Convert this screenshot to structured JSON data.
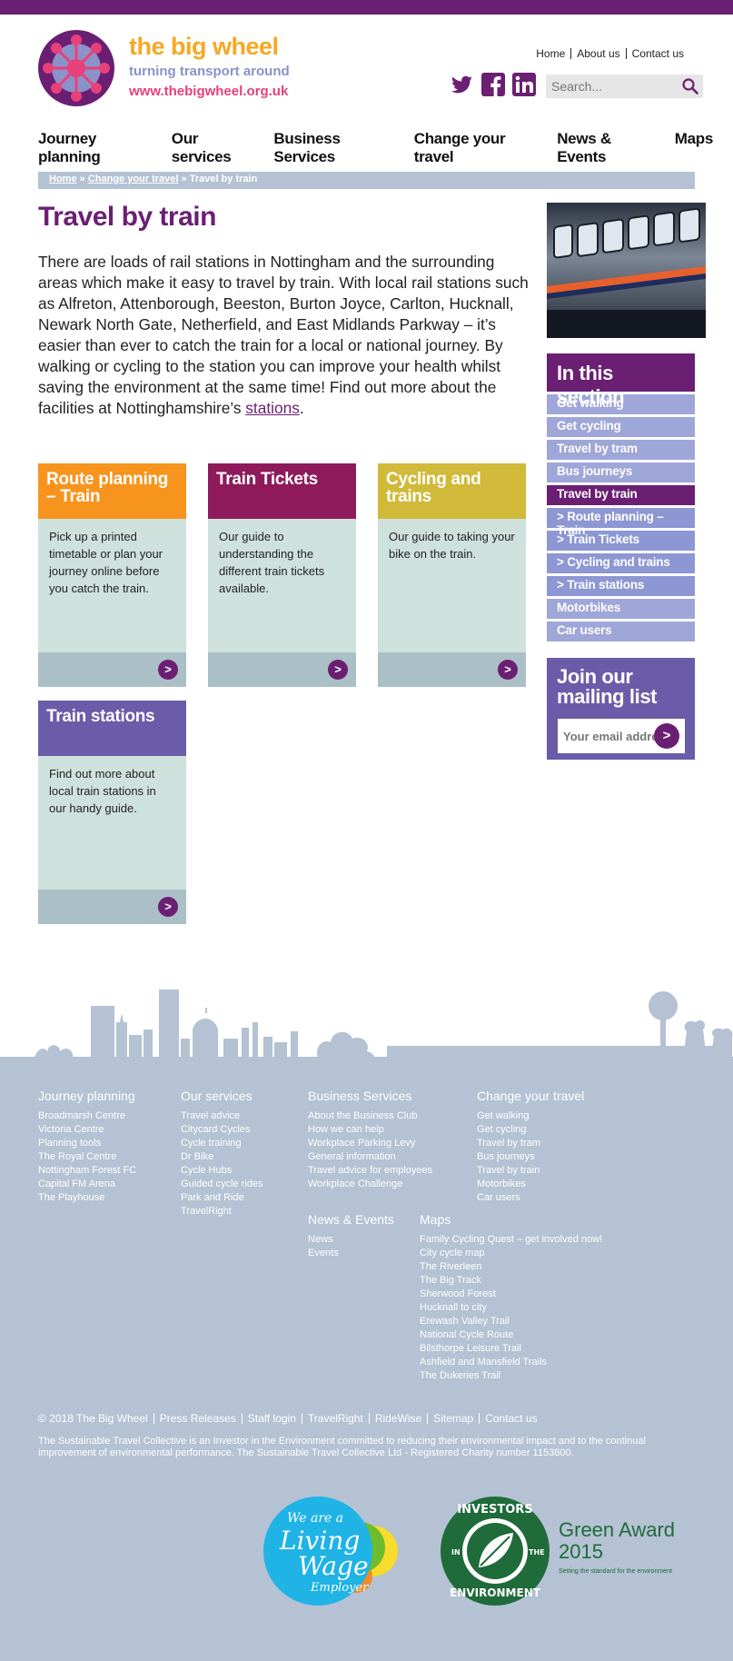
{
  "brand": {
    "name": "the big wheel",
    "tagline": "turning transport around",
    "url": "www.thebigwheel.org.uk",
    "colors": {
      "purple": "#6b1f73",
      "orange": "#f7a823",
      "lilac": "#8b92c8",
      "pink": "#e8407a"
    }
  },
  "util_nav": [
    "Home",
    "About us",
    "Contact us"
  ],
  "social_icons": [
    "twitter-icon",
    "facebook-icon",
    "linkedin-icon"
  ],
  "search": {
    "placeholder": "Search..."
  },
  "main_nav": [
    "Journey planning",
    "Our services",
    "Business Services",
    "Change your travel",
    "News & Events",
    "Maps"
  ],
  "breadcrumb": {
    "home": "Home",
    "sep1": "»",
    "parent": "Change your travel",
    "sep2": "»",
    "current": "Travel by train"
  },
  "page": {
    "title": "Travel by train",
    "intro": "There are loads of  rail stations in Nottingham and the surrounding areas which make it easy to travel by train.  With local rail stations such as Alfreton, Attenborough, Beeston, Burton Joyce, Carlton, Hucknall, Newark North Gate, Netherfield, and East Midlands Parkway – it’s easier than ever to catch the train for a local or national journey. By walking or cycling to the station you can improve your health whilst saving the environment at the same time! Find out more about the facilities at Nottinghamshire’s ",
    "intro_link": "stations",
    "intro_end": "."
  },
  "cards": [
    {
      "title": "Route planning – Train",
      "body": "Pick up a printed timetable or plan your journey online before you catch the train.",
      "color": "#f7941d"
    },
    {
      "title": "Train Tickets",
      "body": "Our guide to understanding the different train tickets available.",
      "color": "#8e1a5c"
    },
    {
      "title": "Cycling and trains",
      "body": "Our guide to taking your bike on the train.",
      "color": "#d1b93a"
    },
    {
      "title": "Train stations",
      "body": "Find out more about local train stations in our handy guide.",
      "color": "#6a5ca8"
    }
  ],
  "card_arrow": ">",
  "sidebar": {
    "title": "In this section",
    "items": [
      {
        "label": "Get walking",
        "state": "normal"
      },
      {
        "label": "Get cycling",
        "state": "normal"
      },
      {
        "label": "Travel by tram",
        "state": "normal"
      },
      {
        "label": "Bus journeys",
        "state": "normal"
      },
      {
        "label": "Travel by train",
        "state": "active"
      },
      {
        "label": "> Route planning – Train",
        "state": "sub"
      },
      {
        "label": "> Train Tickets",
        "state": "sub"
      },
      {
        "label": "> Cycling and trains",
        "state": "sub"
      },
      {
        "label": "> Train stations",
        "state": "sub"
      },
      {
        "label": "Motorbikes",
        "state": "normal"
      },
      {
        "label": "Car users",
        "state": "normal"
      }
    ]
  },
  "mailing": {
    "title": "Join our mailing list",
    "placeholder": "Your email address",
    "button": ">"
  },
  "footer": {
    "columns": [
      {
        "heading": "Journey planning",
        "links": [
          "Broadmarsh Centre",
          "Victoria Centre",
          "Planning tools",
          "The Royal Centre",
          "Nottingham Forest FC",
          "Capital FM Arena",
          "The Playhouse"
        ]
      },
      {
        "heading": "Our services",
        "links": [
          "Travel advice",
          "Citycard Cycles",
          "Cycle training",
          "Dr Bike",
          "Cycle Hubs",
          "Guided cycle rides",
          "Park and Ride",
          "TravelRight"
        ]
      },
      {
        "heading": "Business Services",
        "links": [
          "About the Business Club",
          "How we can help",
          "Workplace Parking Levy",
          "General information",
          "Travel advice for employees",
          "Workplace Challenge"
        ]
      },
      {
        "heading": "Change your travel",
        "links": [
          "Get walking",
          "Get cycling",
          "Travel by tram",
          "Bus journeys",
          "Travel by train",
          "Motorbikes",
          "Car users"
        ]
      },
      {
        "heading": "News & Events",
        "links": [
          "News",
          "Events"
        ]
      },
      {
        "heading": "Maps",
        "links": [
          "Family Cycling Quest – get involved now!",
          "City cycle map",
          "The Riverleen",
          "The Big Track",
          "Sherwood Forest",
          "Hucknall to city",
          "Erewash Valley Trail",
          "National Cycle Route",
          "Bilsthorpe Leisure Trail",
          "Ashfield and Mansfield Trails",
          "The Dukeries Trail"
        ]
      }
    ],
    "bottom_links": [
      "© 2018  The Big Wheel",
      "Press Releases",
      "Staff login",
      "TravelRight",
      "RideWise",
      "Sitemap",
      "Contact us"
    ],
    "legal": "The Sustainable Travel Collective is an Investor in the Environment committed to reducing their environmental impact and to the continual improvement of environmental performance. The Sustainable Travel Collective Ltd - Registered Charity number 1153800.",
    "living_wage": {
      "line1": "We are a",
      "line2": "Living",
      "line3": "Wage",
      "line4": "Employer"
    },
    "iie": {
      "ring_top": "INVESTORS",
      "ring_left": "IN",
      "ring_right": "THE",
      "ring_bottom": "ENVIRONMENT",
      "award": "Green Award",
      "year": "2015",
      "sub": "Setting the standard for the environment"
    }
  }
}
